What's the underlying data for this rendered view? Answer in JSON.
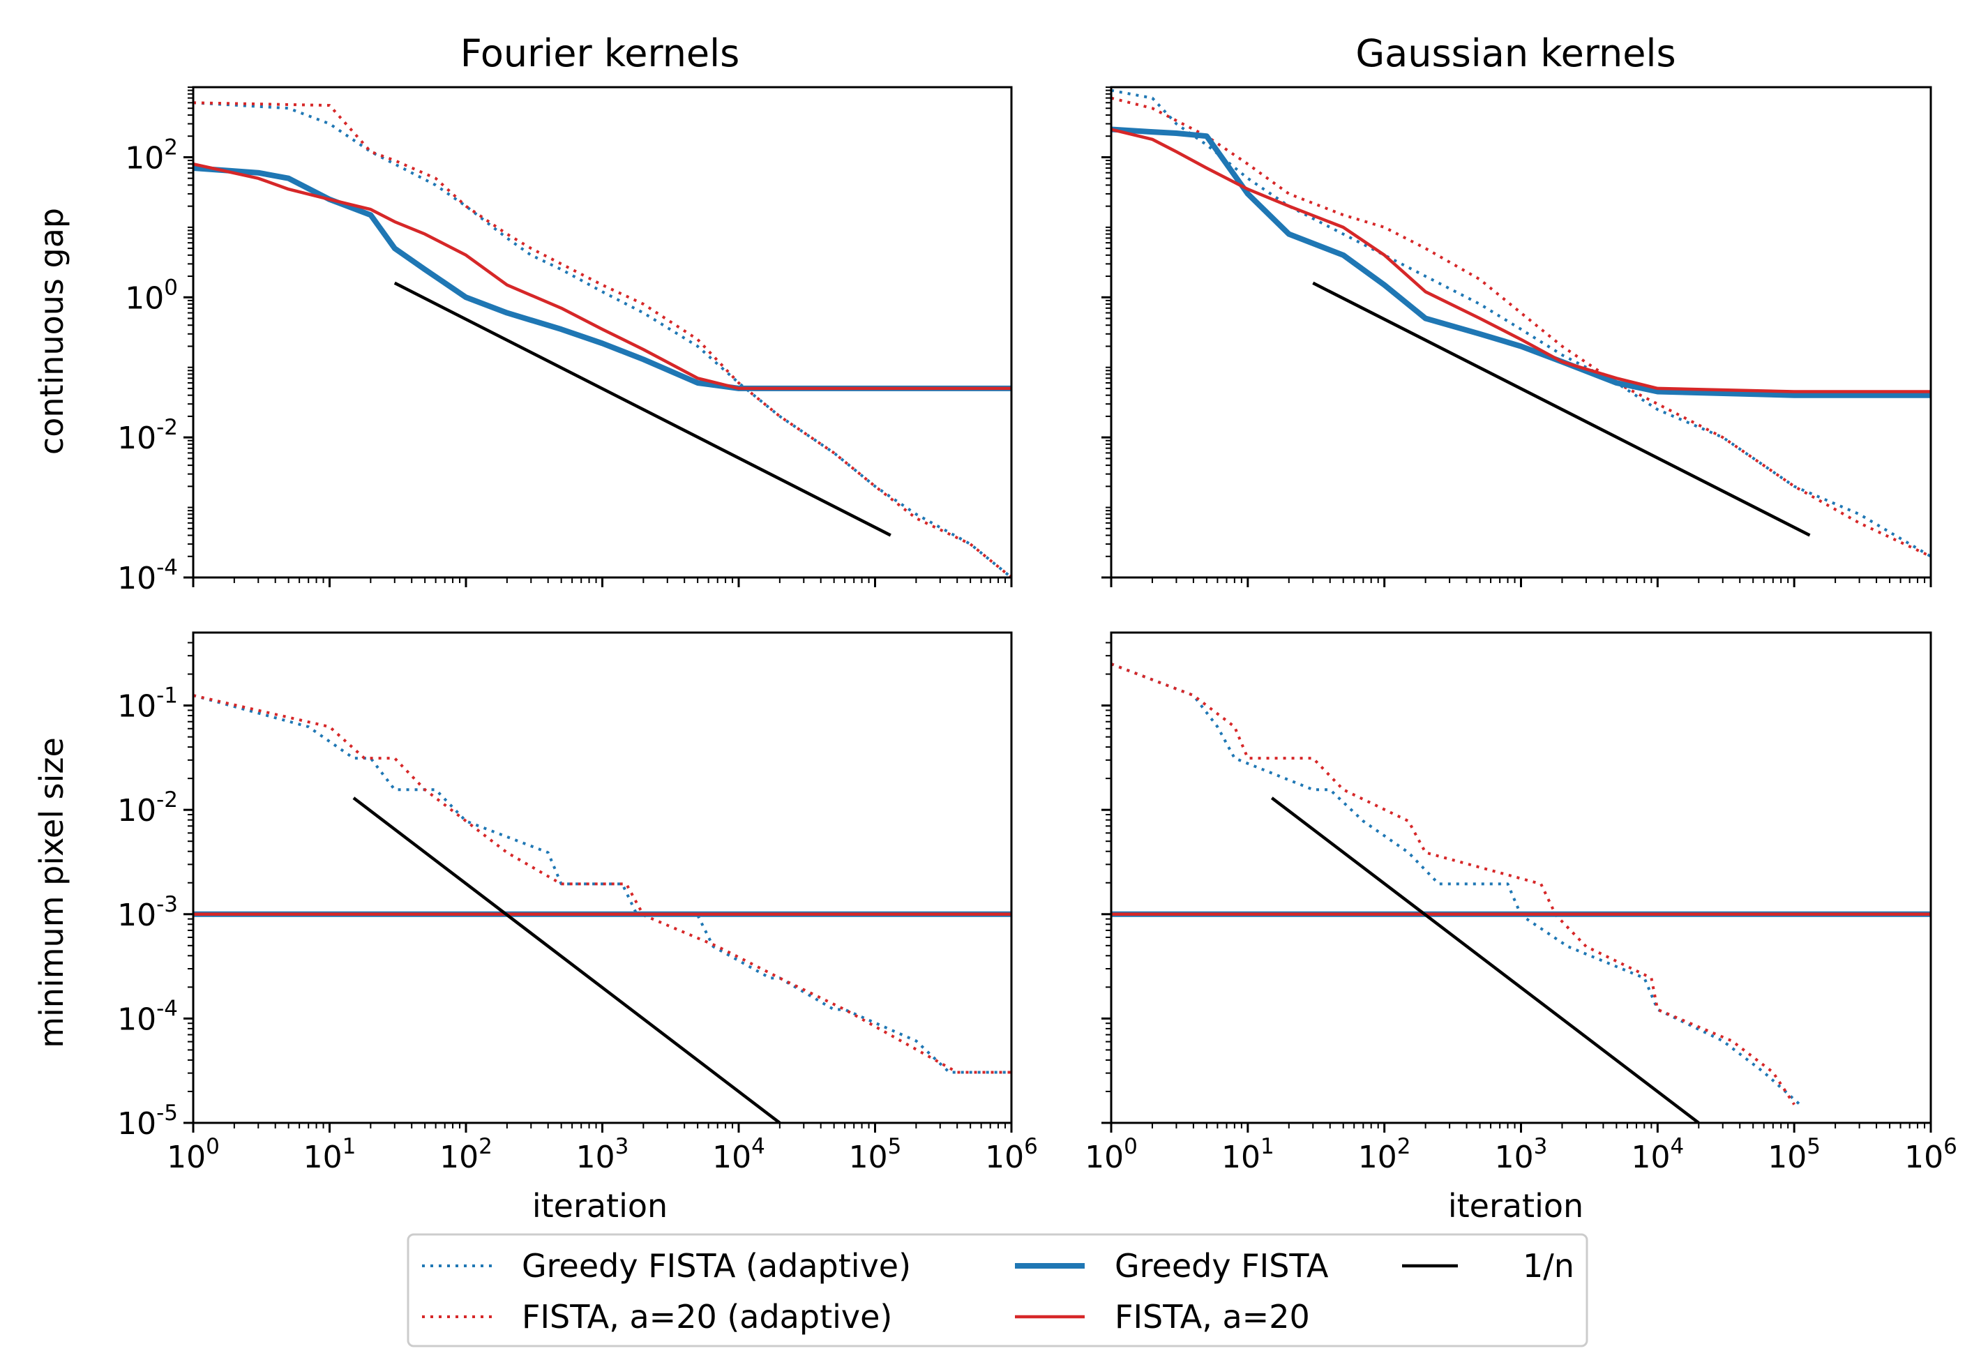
{
  "colors": {
    "blue": "#1f77b4",
    "red": "#d62728",
    "black": "#000000"
  },
  "legend": {
    "items": [
      {
        "label": "Greedy FISTA (adaptive)",
        "color": "#1f77b4",
        "style": "dotted"
      },
      {
        "label": "FISTA, a=20 (adaptive)",
        "color": "#d62728",
        "style": "dotted"
      },
      {
        "label": "Greedy FISTA",
        "color": "#1f77b4",
        "style": "solid-thick"
      },
      {
        "label": "FISTA, a=20",
        "color": "#d62728",
        "style": "solid"
      },
      {
        "label": "1/n",
        "color": "#000000",
        "style": "solid"
      }
    ],
    "placement": "bottom-center"
  },
  "chart_data": [
    {
      "type": "line",
      "title": "Fourier kernels",
      "xlabel": "",
      "ylabel": "continuous gap",
      "xscale": "log",
      "yscale": "log",
      "xlim": [
        1,
        1000000
      ],
      "ylim": [
        0.0001,
        1000
      ],
      "xticks": [
        "10^0",
        "10^1",
        "10^2",
        "10^3",
        "10^4",
        "10^5",
        "10^6"
      ],
      "yticks": [
        "10^-4",
        "10^-2",
        "10^0",
        "10^2"
      ],
      "series": [
        {
          "name": "Greedy FISTA (adaptive)",
          "x": [
            1,
            5,
            10,
            20,
            30,
            60,
            100,
            200,
            300,
            500,
            1000,
            2000,
            5000,
            10000,
            20000,
            50000,
            100000,
            200000,
            500000,
            1000000
          ],
          "y": [
            600,
            500,
            300,
            120,
            80,
            40,
            20,
            7,
            4,
            2.5,
            1.2,
            0.6,
            0.2,
            0.06,
            0.02,
            0.006,
            0.002,
            0.0008,
            0.0003,
            0.0001
          ]
        },
        {
          "name": "FISTA, a=20 (adaptive)",
          "x": [
            1,
            10,
            20,
            30,
            60,
            100,
            200,
            300,
            500,
            1000,
            2000,
            5000,
            10000,
            20000,
            50000,
            100000,
            200000,
            500000,
            1000000
          ],
          "y": [
            600,
            550,
            120,
            90,
            50,
            20,
            8,
            5,
            3,
            1.5,
            0.8,
            0.25,
            0.06,
            0.02,
            0.006,
            0.002,
            0.0007,
            0.0003,
            0.0001
          ]
        },
        {
          "name": "Greedy FISTA",
          "x": [
            1,
            3,
            5,
            10,
            20,
            30,
            50,
            100,
            200,
            500,
            1000,
            2000,
            5000,
            10000,
            100000,
            1000000
          ],
          "y": [
            70,
            60,
            50,
            25,
            15,
            5,
            2.5,
            1,
            0.6,
            0.35,
            0.22,
            0.13,
            0.06,
            0.05,
            0.05,
            0.05
          ]
        },
        {
          "name": "FISTA, a=20",
          "x": [
            1,
            3,
            5,
            10,
            20,
            30,
            50,
            100,
            200,
            500,
            1000,
            2000,
            5000,
            10000,
            100000,
            1000000
          ],
          "y": [
            80,
            50,
            35,
            25,
            18,
            12,
            8,
            4,
            1.5,
            0.7,
            0.35,
            0.18,
            0.07,
            0.05,
            0.05,
            0.05
          ]
        },
        {
          "name": "1/n",
          "x": [
            30,
            130000
          ],
          "y": [
            1.6,
            0.0004
          ]
        }
      ]
    },
    {
      "type": "line",
      "title": "Gaussian kernels",
      "xlabel": "",
      "ylabel": "",
      "xscale": "log",
      "yscale": "log",
      "xlim": [
        1,
        1000000
      ],
      "ylim": [
        0.0001,
        1000
      ],
      "xticks": [
        "10^0",
        "10^1",
        "10^2",
        "10^3",
        "10^4",
        "10^5",
        "10^6"
      ],
      "yticks": [
        "10^-4",
        "10^-2",
        "10^0",
        "10^2"
      ],
      "series": [
        {
          "name": "Greedy FISTA (adaptive)",
          "x": [
            1,
            2,
            3,
            5,
            10,
            20,
            50,
            100,
            200,
            500,
            1000,
            2000,
            5000,
            10000,
            30000,
            100000,
            300000,
            1000000
          ],
          "y": [
            900,
            700,
            300,
            150,
            50,
            20,
            8,
            4,
            2,
            0.8,
            0.35,
            0.15,
            0.06,
            0.025,
            0.01,
            0.002,
            0.0008,
            0.0002
          ]
        },
        {
          "name": "FISTA, a=20 (adaptive)",
          "x": [
            1,
            2,
            5,
            10,
            20,
            50,
            100,
            200,
            500,
            1000,
            2000,
            5000,
            10000,
            30000,
            100000,
            300000,
            1000000
          ],
          "y": [
            700,
            500,
            200,
            80,
            30,
            15,
            10,
            5,
            1.8,
            0.6,
            0.2,
            0.06,
            0.03,
            0.01,
            0.002,
            0.0006,
            0.0002
          ]
        },
        {
          "name": "Greedy FISTA",
          "x": [
            1,
            2,
            3,
            5,
            10,
            20,
            50,
            100,
            200,
            500,
            1000,
            2000,
            5000,
            10000,
            100000,
            1000000
          ],
          "y": [
            250,
            230,
            220,
            200,
            30,
            8,
            4,
            1.5,
            0.5,
            0.3,
            0.2,
            0.12,
            0.06,
            0.045,
            0.04,
            0.04
          ]
        },
        {
          "name": "FISTA, a=20",
          "x": [
            1,
            2,
            3,
            5,
            10,
            20,
            50,
            100,
            200,
            500,
            1000,
            2000,
            5000,
            10000,
            100000,
            1000000
          ],
          "y": [
            250,
            180,
            120,
            70,
            35,
            20,
            10,
            4,
            1.2,
            0.5,
            0.25,
            0.12,
            0.07,
            0.05,
            0.045,
            0.045
          ]
        },
        {
          "name": "1/n",
          "x": [
            30,
            130000
          ],
          "y": [
            1.6,
            0.0004
          ]
        }
      ]
    },
    {
      "type": "line",
      "title": "",
      "xlabel": "iteration",
      "ylabel": "minimum pixel size",
      "xscale": "log",
      "yscale": "log",
      "xlim": [
        1,
        1000000
      ],
      "ylim": [
        1e-05,
        0.5
      ],
      "xticks": [
        "10^0",
        "10^1",
        "10^2",
        "10^3",
        "10^4",
        "10^5",
        "10^6"
      ],
      "yticks": [
        "10^-5",
        "10^-4",
        "10^-3",
        "10^-2",
        "10^-1"
      ],
      "series": [
        {
          "name": "Greedy FISTA (adaptive)",
          "x": [
            1,
            7,
            15,
            20,
            30,
            60,
            100,
            400,
            500,
            1400,
            1800,
            5000,
            6500,
            17000,
            20000,
            50000,
            60000,
            200000,
            350000,
            1000000
          ],
          "y": [
            0.125,
            0.0625,
            0.03125,
            0.03125,
            0.015625,
            0.015625,
            0.0078,
            0.0039,
            0.00195,
            0.00195,
            0.00098,
            0.00098,
            0.00049,
            0.000244,
            0.000244,
            0.000122,
            0.000122,
            6.1e-05,
            3.05e-05,
            3.05e-05
          ]
        },
        {
          "name": "FISTA, a=20 (adaptive)",
          "x": [
            1,
            10,
            18,
            30,
            50,
            100,
            200,
            500,
            1500,
            2000,
            7000,
            20000,
            60000,
            400000,
            1000000
          ],
          "y": [
            0.125,
            0.0625,
            0.03125,
            0.03125,
            0.015625,
            0.0078,
            0.0039,
            0.00195,
            0.00195,
            0.00098,
            0.00049,
            0.000244,
            0.000122,
            3.05e-05,
            3.05e-05
          ]
        },
        {
          "name": "Greedy FISTA",
          "x": [
            1,
            1000000
          ],
          "y": [
            0.001,
            0.001
          ]
        },
        {
          "name": "FISTA, a=20",
          "x": [
            1,
            1000000
          ],
          "y": [
            0.001,
            0.001
          ]
        },
        {
          "name": "1/n",
          "x": [
            15,
            20000
          ],
          "y": [
            0.013,
            1e-05
          ]
        }
      ]
    },
    {
      "type": "line",
      "title": "",
      "xlabel": "iteration",
      "ylabel": "",
      "xscale": "log",
      "yscale": "log",
      "xlim": [
        1,
        1000000
      ],
      "ylim": [
        1e-05,
        0.5
      ],
      "xticks": [
        "10^0",
        "10^1",
        "10^2",
        "10^3",
        "10^4",
        "10^5",
        "10^6"
      ],
      "yticks": [
        "10^-5",
        "10^-4",
        "10^-3",
        "10^-2",
        "10^-1"
      ],
      "series": [
        {
          "name": "Greedy FISTA (adaptive)",
          "x": [
            1,
            4,
            6,
            8,
            30,
            40,
            70,
            150,
            250,
            800,
            1000,
            2200,
            8000,
            10000,
            30000,
            60000,
            110000
          ],
          "y": [
            0.25,
            0.125,
            0.0625,
            0.03125,
            0.015625,
            0.015625,
            0.0078,
            0.0039,
            0.00195,
            0.00195,
            0.00098,
            0.00049,
            0.000244,
            0.000122,
            6.1e-05,
            3.05e-05,
            1.5e-05
          ]
        },
        {
          "name": "FISTA, a=20 (adaptive)",
          "x": [
            1,
            4,
            8,
            10,
            30,
            50,
            150,
            200,
            1400,
            1800,
            3000,
            9000,
            10000,
            35000,
            70000,
            100000
          ],
          "y": [
            0.25,
            0.125,
            0.0625,
            0.03125,
            0.03125,
            0.015625,
            0.0078,
            0.0039,
            0.00195,
            0.00098,
            0.00049,
            0.000244,
            0.000122,
            6.1e-05,
            3.05e-05,
            1.5e-05
          ]
        },
        {
          "name": "Greedy FISTA",
          "x": [
            1,
            1000000
          ],
          "y": [
            0.001,
            0.001
          ]
        },
        {
          "name": "FISTA, a=20",
          "x": [
            1,
            1000000
          ],
          "y": [
            0.001,
            0.001
          ]
        },
        {
          "name": "1/n",
          "x": [
            15,
            20000
          ],
          "y": [
            0.013,
            1e-05
          ]
        }
      ]
    }
  ]
}
